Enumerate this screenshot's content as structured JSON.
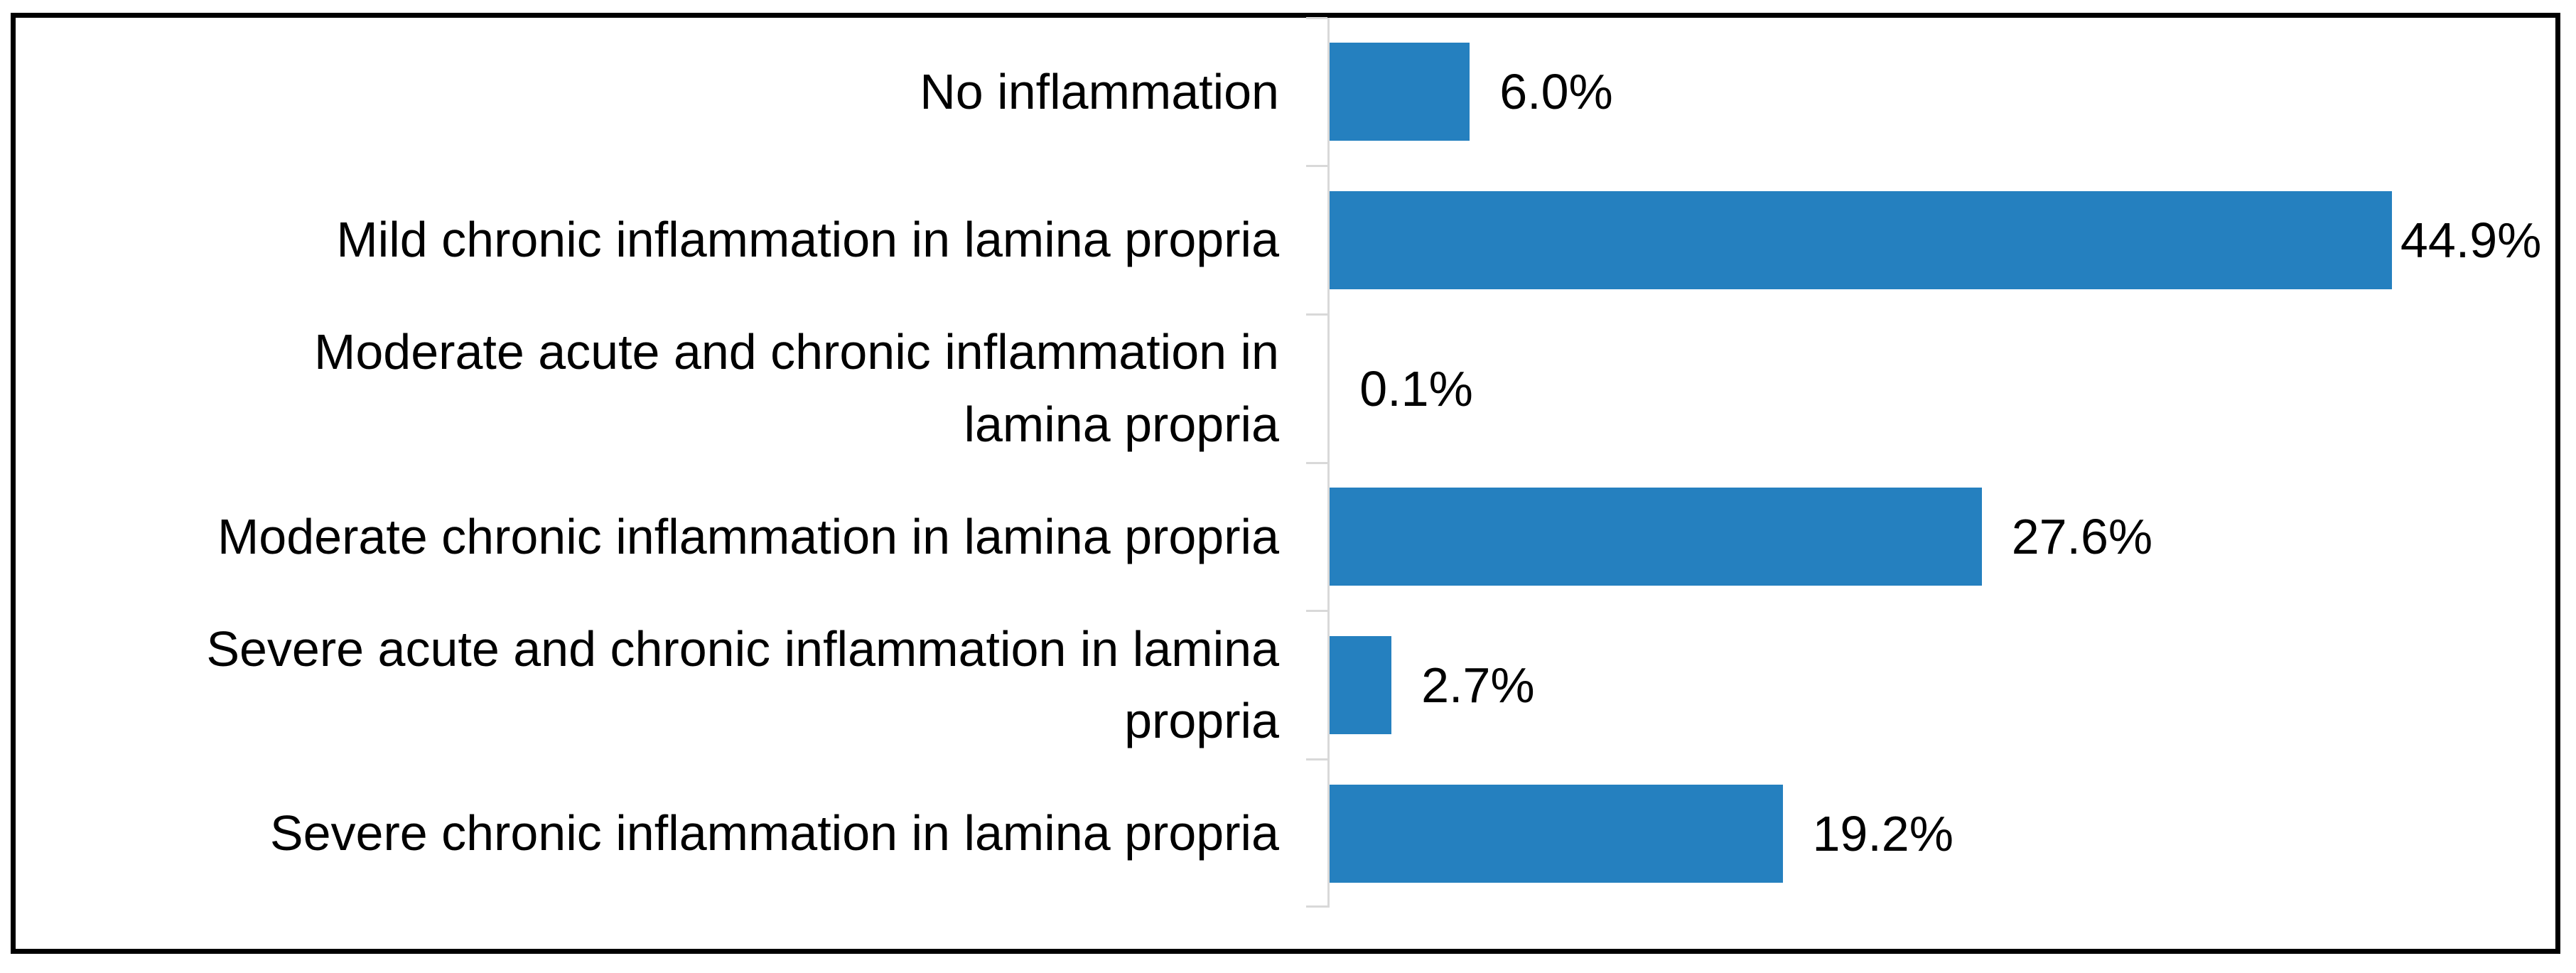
{
  "chart_data": {
    "type": "bar",
    "orientation": "horizontal",
    "title": "",
    "xlabel": "",
    "ylabel": "",
    "categories": [
      "No inflammation",
      "Mild chronic inflammation in lamina propria",
      "Moderate acute and chronic inflammation in lamina propria",
      "Moderate chronic inflammation in lamina propria",
      "Severe acute and chronic inflammation in lamina propria",
      "Severe chronic inflammation in lamina propria"
    ],
    "values": [
      6.0,
      44.9,
      0.1,
      27.6,
      2.7,
      19.2
    ],
    "data_labels": [
      "6.0%",
      "44.9%",
      "0.1%",
      "27.6%",
      "2.7%",
      "19.2%"
    ],
    "xlim": [
      0,
      50
    ],
    "grid": false,
    "legend": false,
    "bar_color": "#2580BF",
    "axis_color": "#D9D9D9",
    "frame_color": "#000000"
  },
  "rows": [
    {
      "label": "No inflammation",
      "value": "6.0%"
    },
    {
      "label": "Mild chronic inflammation in lamina propria",
      "value": "44.9%"
    },
    {
      "label": "Moderate acute and chronic inflammation in\nlamina propria",
      "value": "0.1%"
    },
    {
      "label": "Moderate chronic inflammation in lamina propria",
      "value": "27.6%"
    },
    {
      "label": "Severe acute and chronic inflammation in lamina\npropria",
      "value": "2.7%"
    },
    {
      "label": "Severe chronic inflammation in lamina propria",
      "value": "19.2%"
    }
  ]
}
